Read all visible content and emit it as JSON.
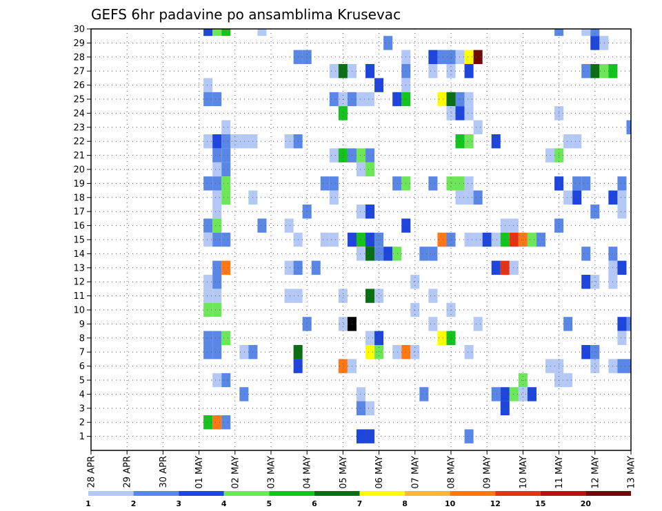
{
  "chart_data": {
    "type": "heatmap",
    "title": "GEFS 6hr padavine po ansamblima Krusevac",
    "xlabel": "",
    "ylabel": "",
    "x_tick_labels": [
      "28 APR",
      "29 APR",
      "30 APR",
      "01 MAY",
      "02 MAY",
      "03 MAY",
      "04 MAY",
      "05 MAY",
      "06 MAY",
      "07 MAY",
      "08 MAY",
      "09 MAY",
      "10 MAY",
      "11 MAY",
      "12 MAY",
      "13 MAY"
    ],
    "y_tick_labels": [
      "1",
      "2",
      "3",
      "4",
      "5",
      "6",
      "7",
      "8",
      "9",
      "10",
      "11",
      "12",
      "13",
      "14",
      "15",
      "16",
      "17",
      "18",
      "19",
      "20",
      "21",
      "22",
      "23",
      "24",
      "25",
      "26",
      "27",
      "28",
      "29",
      "30"
    ],
    "ylim": [
      0,
      30
    ],
    "time_steps": 61,
    "grid": true,
    "colorbar": {
      "labels": [
        "1",
        "2",
        "3",
        "4",
        "5",
        "6",
        "7",
        "8",
        "10",
        "12",
        "15",
        "20"
      ],
      "colors": [
        "#b4c8f5",
        "#5a87e6",
        "#1e46dc",
        "#6ee65a",
        "#14c31e",
        "#0a6e14",
        "#ffff00",
        "#ffb43c",
        "#ff7814",
        "#e63214",
        "#b41414",
        "#6e0a0a"
      ]
    },
    "cells": [
      [
        13,
        30,
        3
      ],
      [
        14,
        30,
        4
      ],
      [
        15,
        30,
        5
      ],
      [
        19,
        30,
        1
      ],
      [
        52,
        30,
        2
      ],
      [
        55,
        30,
        1
      ],
      [
        56,
        30,
        2
      ],
      [
        33,
        29,
        2
      ],
      [
        56,
        29,
        3
      ],
      [
        57,
        29,
        1
      ],
      [
        23,
        28,
        2
      ],
      [
        24,
        28,
        2
      ],
      [
        35,
        28,
        1
      ],
      [
        38,
        28,
        3
      ],
      [
        39,
        28,
        2
      ],
      [
        40,
        28,
        2
      ],
      [
        41,
        28,
        1
      ],
      [
        42,
        28,
        7
      ],
      [
        43,
        28,
        12
      ],
      [
        27,
        27,
        1
      ],
      [
        28,
        27,
        6
      ],
      [
        29,
        27,
        1
      ],
      [
        31,
        27,
        3
      ],
      [
        35,
        27,
        2
      ],
      [
        38,
        27,
        1
      ],
      [
        40,
        27,
        1
      ],
      [
        42,
        27,
        3
      ],
      [
        55,
        27,
        2
      ],
      [
        56,
        27,
        6
      ],
      [
        57,
        27,
        4
      ],
      [
        58,
        27,
        5
      ],
      [
        13,
        26,
        1
      ],
      [
        32,
        26,
        3
      ],
      [
        35,
        26,
        1
      ],
      [
        13,
        25,
        2
      ],
      [
        14,
        25,
        2
      ],
      [
        27,
        25,
        2
      ],
      [
        28,
        25,
        1
      ],
      [
        29,
        25,
        2
      ],
      [
        30,
        25,
        1
      ],
      [
        31,
        25,
        1
      ],
      [
        34,
        25,
        3
      ],
      [
        35,
        25,
        5
      ],
      [
        39,
        25,
        7
      ],
      [
        40,
        25,
        6
      ],
      [
        41,
        25,
        2
      ],
      [
        42,
        25,
        1
      ],
      [
        28,
        24,
        5
      ],
      [
        40,
        24,
        1
      ],
      [
        41,
        24,
        3
      ],
      [
        42,
        24,
        1
      ],
      [
        52,
        24,
        1
      ],
      [
        15,
        23,
        1
      ],
      [
        43,
        23,
        1
      ],
      [
        60,
        23,
        2
      ],
      [
        13,
        22,
        1
      ],
      [
        14,
        22,
        3
      ],
      [
        15,
        22,
        2
      ],
      [
        16,
        22,
        1
      ],
      [
        17,
        22,
        1
      ],
      [
        18,
        22,
        1
      ],
      [
        22,
        22,
        1
      ],
      [
        23,
        22,
        2
      ],
      [
        41,
        22,
        5
      ],
      [
        42,
        22,
        4
      ],
      [
        45,
        22,
        3
      ],
      [
        53,
        22,
        1
      ],
      [
        54,
        22,
        1
      ],
      [
        14,
        21,
        2
      ],
      [
        15,
        21,
        2
      ],
      [
        27,
        21,
        1
      ],
      [
        28,
        21,
        5
      ],
      [
        29,
        21,
        2
      ],
      [
        30,
        21,
        4
      ],
      [
        31,
        21,
        2
      ],
      [
        51,
        21,
        1
      ],
      [
        52,
        21,
        4
      ],
      [
        14,
        20,
        1
      ],
      [
        15,
        20,
        2
      ],
      [
        30,
        20,
        1
      ],
      [
        31,
        20,
        4
      ],
      [
        13,
        19,
        2
      ],
      [
        14,
        19,
        2
      ],
      [
        15,
        19,
        4
      ],
      [
        26,
        19,
        2
      ],
      [
        27,
        19,
        2
      ],
      [
        34,
        19,
        2
      ],
      [
        35,
        19,
        4
      ],
      [
        38,
        19,
        2
      ],
      [
        40,
        19,
        4
      ],
      [
        41,
        19,
        4
      ],
      [
        42,
        19,
        1
      ],
      [
        52,
        19,
        3
      ],
      [
        54,
        19,
        2
      ],
      [
        55,
        19,
        2
      ],
      [
        59,
        19,
        2
      ],
      [
        14,
        18,
        1
      ],
      [
        15,
        18,
        4
      ],
      [
        18,
        18,
        1
      ],
      [
        27,
        18,
        1
      ],
      [
        41,
        18,
        1
      ],
      [
        42,
        18,
        1
      ],
      [
        43,
        18,
        2
      ],
      [
        53,
        18,
        1
      ],
      [
        54,
        18,
        3
      ],
      [
        58,
        18,
        3
      ],
      [
        59,
        18,
        1
      ],
      [
        14,
        17,
        1
      ],
      [
        24,
        17,
        2
      ],
      [
        30,
        17,
        1
      ],
      [
        31,
        17,
        3
      ],
      [
        56,
        17,
        2
      ],
      [
        59,
        17,
        1
      ],
      [
        13,
        16,
        2
      ],
      [
        14,
        16,
        4
      ],
      [
        19,
        16,
        2
      ],
      [
        22,
        16,
        1
      ],
      [
        35,
        16,
        3
      ],
      [
        46,
        16,
        1
      ],
      [
        47,
        16,
        1
      ],
      [
        52,
        16,
        2
      ],
      [
        13,
        15,
        1
      ],
      [
        14,
        15,
        2
      ],
      [
        15,
        15,
        2
      ],
      [
        23,
        15,
        1
      ],
      [
        26,
        15,
        1
      ],
      [
        27,
        15,
        1
      ],
      [
        29,
        15,
        3
      ],
      [
        30,
        15,
        5
      ],
      [
        31,
        15,
        3
      ],
      [
        32,
        15,
        2
      ],
      [
        39,
        15,
        9
      ],
      [
        40,
        15,
        2
      ],
      [
        42,
        15,
        1
      ],
      [
        43,
        15,
        1
      ],
      [
        44,
        15,
        3
      ],
      [
        45,
        15,
        1
      ],
      [
        46,
        15,
        5
      ],
      [
        47,
        15,
        10
      ],
      [
        48,
        15,
        9
      ],
      [
        49,
        15,
        4
      ],
      [
        50,
        15,
        2
      ],
      [
        30,
        14,
        1
      ],
      [
        31,
        14,
        6
      ],
      [
        32,
        14,
        2
      ],
      [
        33,
        14,
        3
      ],
      [
        34,
        14,
        4
      ],
      [
        37,
        14,
        2
      ],
      [
        38,
        14,
        2
      ],
      [
        55,
        14,
        2
      ],
      [
        58,
        14,
        2
      ],
      [
        14,
        13,
        2
      ],
      [
        15,
        13,
        9
      ],
      [
        22,
        13,
        1
      ],
      [
        23,
        13,
        2
      ],
      [
        25,
        13,
        2
      ],
      [
        45,
        13,
        3
      ],
      [
        46,
        13,
        10
      ],
      [
        47,
        13,
        1
      ],
      [
        58,
        13,
        1
      ],
      [
        59,
        13,
        3
      ],
      [
        13,
        12,
        1
      ],
      [
        14,
        12,
        2
      ],
      [
        36,
        12,
        1
      ],
      [
        55,
        12,
        3
      ],
      [
        56,
        12,
        1
      ],
      [
        58,
        12,
        1
      ],
      [
        13,
        11,
        1
      ],
      [
        14,
        11,
        1
      ],
      [
        22,
        11,
        1
      ],
      [
        23,
        11,
        1
      ],
      [
        28,
        11,
        1
      ],
      [
        31,
        11,
        6
      ],
      [
        32,
        11,
        1
      ],
      [
        38,
        11,
        1
      ],
      [
        13,
        10,
        4
      ],
      [
        14,
        10,
        4
      ],
      [
        36,
        10,
        1
      ],
      [
        40,
        10,
        1
      ],
      [
        24,
        9,
        2
      ],
      [
        28,
        9,
        1
      ],
      [
        29,
        9,
        15
      ],
      [
        38,
        9,
        1
      ],
      [
        43,
        9,
        1
      ],
      [
        53,
        9,
        2
      ],
      [
        59,
        9,
        3
      ],
      [
        60,
        9,
        2
      ],
      [
        13,
        8,
        2
      ],
      [
        14,
        8,
        2
      ],
      [
        15,
        8,
        4
      ],
      [
        31,
        8,
        1
      ],
      [
        32,
        8,
        3
      ],
      [
        39,
        8,
        7
      ],
      [
        40,
        8,
        5
      ],
      [
        59,
        8,
        1
      ],
      [
        13,
        7,
        2
      ],
      [
        14,
        7,
        2
      ],
      [
        17,
        7,
        1
      ],
      [
        18,
        7,
        2
      ],
      [
        23,
        7,
        6
      ],
      [
        31,
        7,
        7
      ],
      [
        32,
        7,
        4
      ],
      [
        34,
        7,
        1
      ],
      [
        35,
        7,
        9
      ],
      [
        36,
        7,
        1
      ],
      [
        42,
        7,
        1
      ],
      [
        55,
        7,
        3
      ],
      [
        56,
        7,
        2
      ],
      [
        23,
        6,
        3
      ],
      [
        28,
        6,
        9
      ],
      [
        29,
        6,
        1
      ],
      [
        51,
        6,
        1
      ],
      [
        52,
        6,
        1
      ],
      [
        56,
        6,
        1
      ],
      [
        58,
        6,
        1
      ],
      [
        59,
        6,
        2
      ],
      [
        60,
        6,
        2
      ],
      [
        14,
        5,
        1
      ],
      [
        15,
        5,
        2
      ],
      [
        48,
        5,
        4
      ],
      [
        52,
        5,
        1
      ],
      [
        53,
        5,
        1
      ],
      [
        17,
        4,
        2
      ],
      [
        30,
        4,
        1
      ],
      [
        37,
        4,
        2
      ],
      [
        45,
        4,
        2
      ],
      [
        46,
        4,
        3
      ],
      [
        47,
        4,
        4
      ],
      [
        48,
        4,
        1
      ],
      [
        49,
        4,
        3
      ],
      [
        30,
        3,
        2
      ],
      [
        31,
        3,
        1
      ],
      [
        46,
        3,
        3
      ],
      [
        13,
        2,
        5
      ],
      [
        14,
        2,
        9
      ],
      [
        15,
        2,
        2
      ],
      [
        30,
        1,
        3
      ],
      [
        31,
        1,
        3
      ],
      [
        42,
        1,
        2
      ]
    ]
  }
}
